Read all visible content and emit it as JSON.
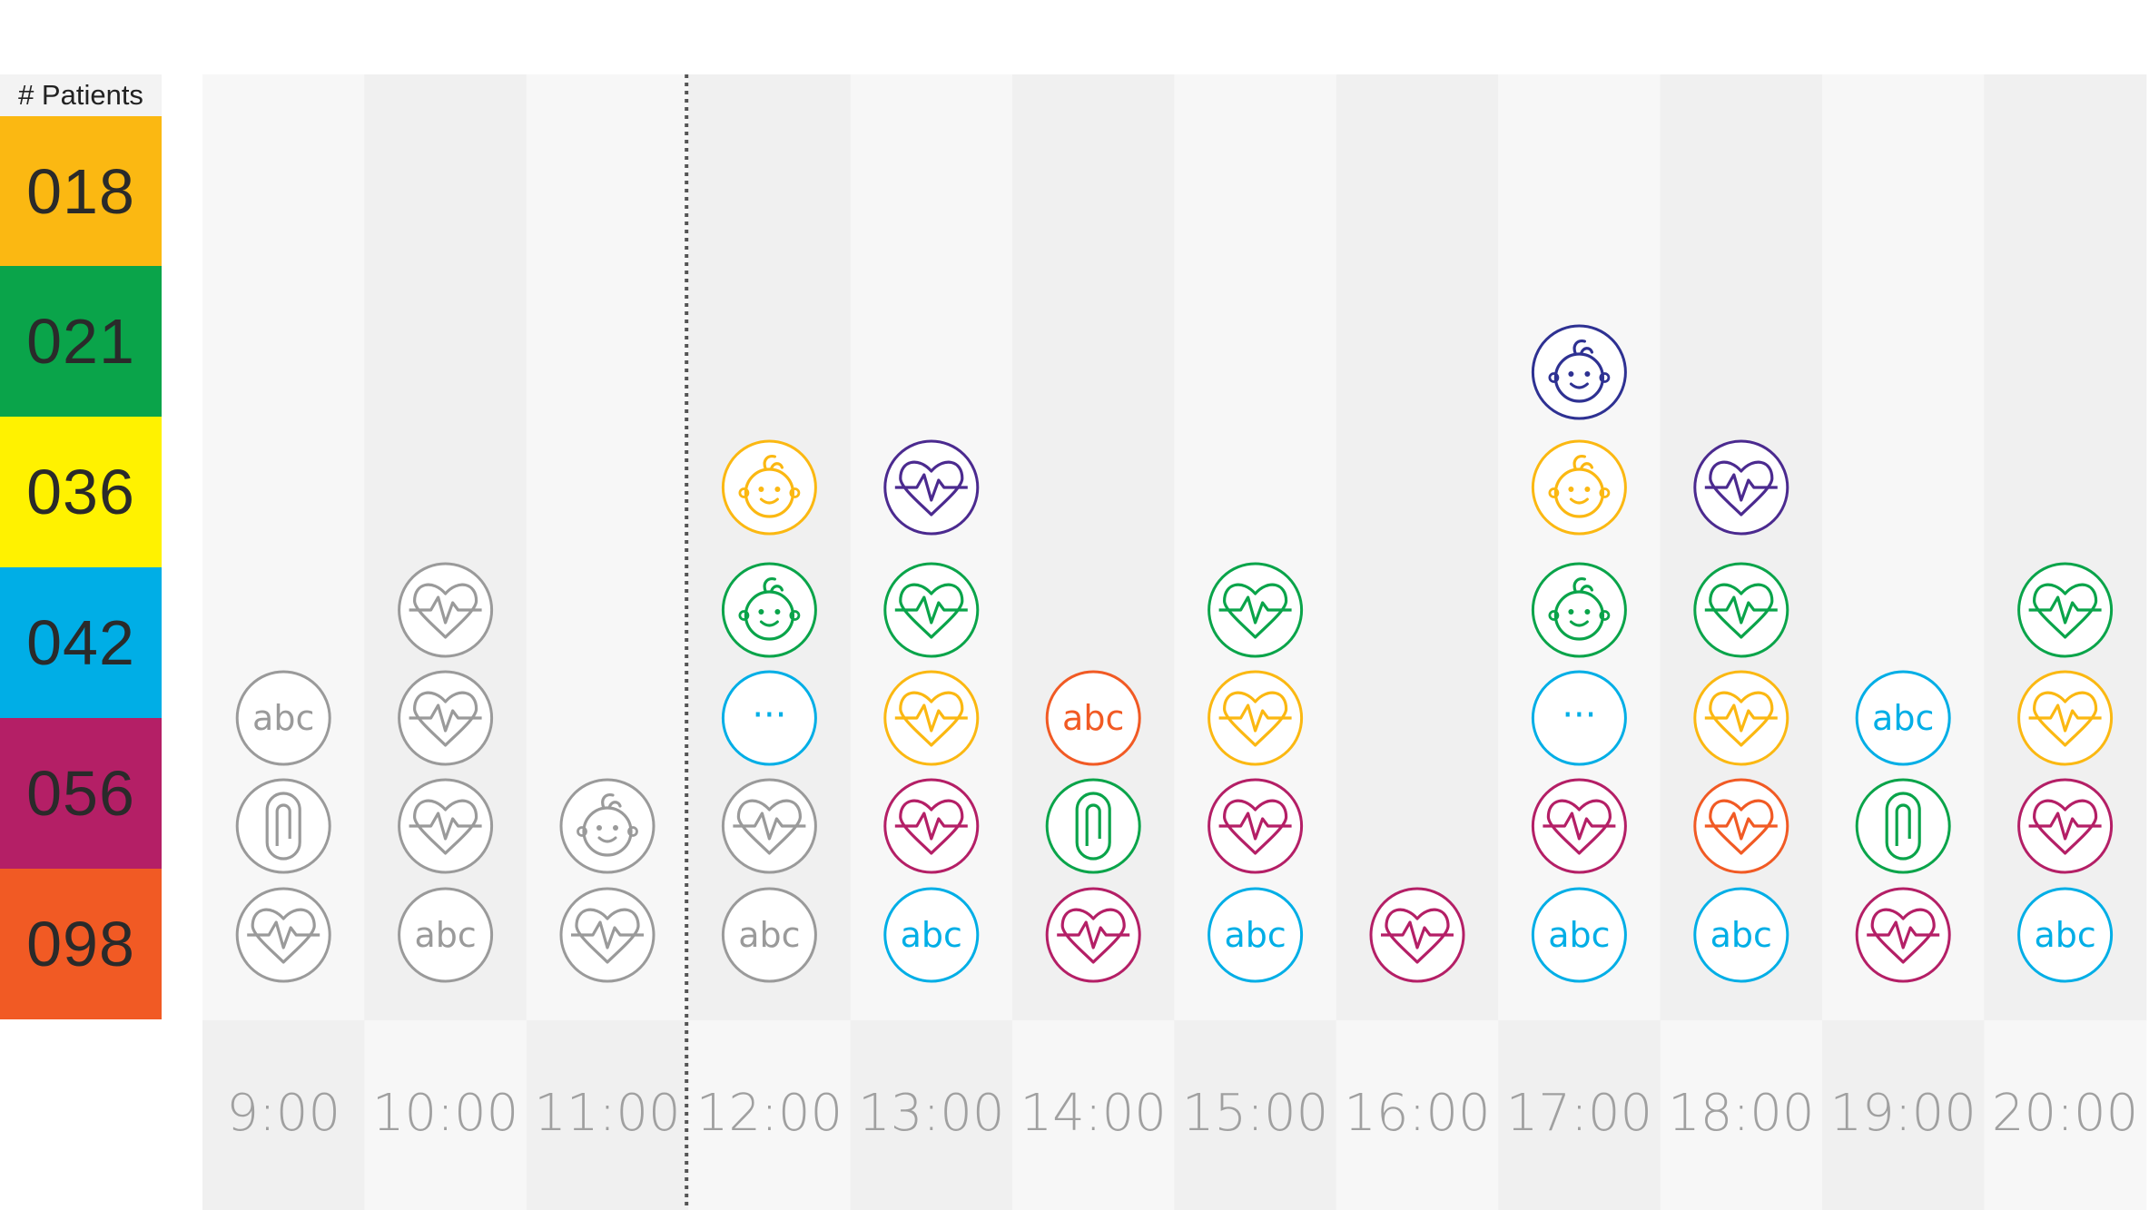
{
  "legend": {
    "title": "# Patients",
    "patients": [
      {
        "id": "018",
        "color": "#fbb812"
      },
      {
        "id": "021",
        "color": "#0aa44a"
      },
      {
        "id": "036",
        "color": "#fff200"
      },
      {
        "id": "042",
        "color": "#00aee6"
      },
      {
        "id": "056",
        "color": "#b41f66"
      },
      {
        "id": "098",
        "color": "#f15a24"
      }
    ]
  },
  "timeline": {
    "hours": [
      "9:00",
      "10:00",
      "11:00",
      "12:00",
      "13:00",
      "14:00",
      "15:00",
      "16:00",
      "17:00",
      "18:00",
      "19:00",
      "20:00"
    ],
    "current_time_marker_between": [
      "11:00",
      "12:00"
    ]
  },
  "icon_legend": {
    "heart": "heart-rate-icon",
    "clip": "paperclip-icon",
    "baby": "baby-face-icon",
    "abc": "text-note-icon",
    "dots": "more-icon"
  },
  "icon_text": {
    "abc": "abc",
    "dots": "···"
  },
  "colors": {
    "gray": "#9a9a9a",
    "purple": "#4b2a8f",
    "navy": "#2e3192",
    "green": "#0aa44a",
    "yellow": "#fbb812",
    "blue": "#00aee6",
    "magenta": "#b41f66",
    "orange": "#f15a24",
    "hour_label": "#a0a0a0",
    "column_light": "#f7f7f7",
    "column_dark": "#f0f0f0"
  },
  "events": [
    {
      "hour": 0,
      "stack": [
        {
          "type": "heart",
          "color": "gray"
        },
        {
          "type": "clip",
          "color": "gray"
        },
        {
          "type": "abc",
          "color": "gray"
        }
      ]
    },
    {
      "hour": 1,
      "stack": [
        {
          "type": "abc",
          "color": "gray"
        },
        {
          "type": "heart",
          "color": "gray"
        },
        {
          "type": "heart",
          "color": "gray"
        },
        {
          "type": "heart",
          "color": "gray"
        }
      ]
    },
    {
      "hour": 2,
      "stack": [
        {
          "type": "heart",
          "color": "gray"
        },
        {
          "type": "baby",
          "color": "gray"
        }
      ]
    },
    {
      "hour": 3,
      "stack": [
        {
          "type": "abc",
          "color": "gray"
        },
        {
          "type": "heart",
          "color": "gray"
        },
        {
          "type": "dots",
          "color": "blue"
        },
        {
          "type": "baby",
          "color": "green"
        },
        {
          "type": "baby",
          "color": "yellow"
        }
      ]
    },
    {
      "hour": 4,
      "stack": [
        {
          "type": "abc",
          "color": "blue"
        },
        {
          "type": "heart",
          "color": "magenta"
        },
        {
          "type": "heart",
          "color": "yellow"
        },
        {
          "type": "heart",
          "color": "green"
        },
        {
          "type": "heart",
          "color": "purple"
        }
      ]
    },
    {
      "hour": 5,
      "stack": [
        {
          "type": "heart",
          "color": "magenta"
        },
        {
          "type": "clip",
          "color": "green"
        },
        {
          "type": "abc",
          "color": "orange"
        }
      ]
    },
    {
      "hour": 6,
      "stack": [
        {
          "type": "abc",
          "color": "blue"
        },
        {
          "type": "heart",
          "color": "magenta"
        },
        {
          "type": "heart",
          "color": "yellow"
        },
        {
          "type": "heart",
          "color": "green"
        }
      ]
    },
    {
      "hour": 7,
      "stack": [
        {
          "type": "heart",
          "color": "magenta"
        }
      ]
    },
    {
      "hour": 8,
      "stack": [
        {
          "type": "abc",
          "color": "blue"
        },
        {
          "type": "heart",
          "color": "magenta"
        },
        {
          "type": "dots",
          "color": "blue"
        },
        {
          "type": "baby",
          "color": "green"
        },
        {
          "type": "baby",
          "color": "yellow"
        },
        {
          "type": "baby",
          "color": "navy"
        }
      ]
    },
    {
      "hour": 9,
      "stack": [
        {
          "type": "abc",
          "color": "blue"
        },
        {
          "type": "heart",
          "color": "orange"
        },
        {
          "type": "heart",
          "color": "yellow"
        },
        {
          "type": "heart",
          "color": "green"
        },
        {
          "type": "heart",
          "color": "purple"
        }
      ]
    },
    {
      "hour": 10,
      "stack": [
        {
          "type": "heart",
          "color": "magenta"
        },
        {
          "type": "clip",
          "color": "green"
        },
        {
          "type": "abc",
          "color": "blue"
        }
      ]
    },
    {
      "hour": 11,
      "stack": [
        {
          "type": "abc",
          "color": "blue"
        },
        {
          "type": "heart",
          "color": "magenta"
        },
        {
          "type": "heart",
          "color": "yellow"
        },
        {
          "type": "heart",
          "color": "green"
        }
      ]
    }
  ]
}
